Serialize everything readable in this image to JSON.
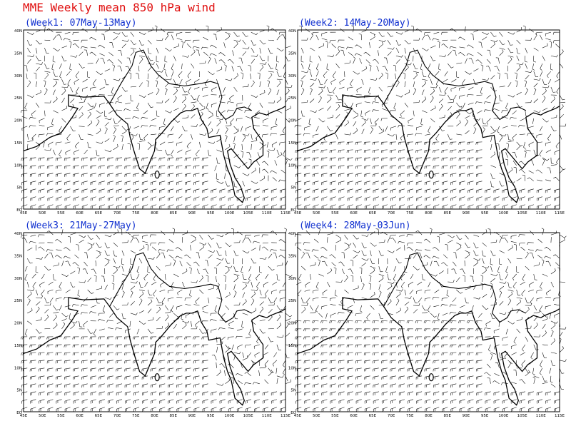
{
  "title": "MME Weekly mean 850 hPa wind",
  "panels": [
    {
      "title": "(Week1: 07May-13May)"
    },
    {
      "title": "(Week2: 14May-20May)"
    },
    {
      "title": "(Week3: 21May-27May)"
    },
    {
      "title": "(Week4: 28May-03Jun)"
    }
  ],
  "map": {
    "lat_labels": [
      "40N",
      "35N",
      "30N",
      "25N",
      "20N",
      "15N",
      "10N",
      "5N",
      "EQ"
    ],
    "lon_labels": [
      "45E",
      "50E",
      "55E",
      "60E",
      "65E",
      "70E",
      "75E",
      "80E",
      "85E",
      "90E",
      "95E",
      "100E",
      "105E",
      "110E",
      "115E"
    ]
  }
}
